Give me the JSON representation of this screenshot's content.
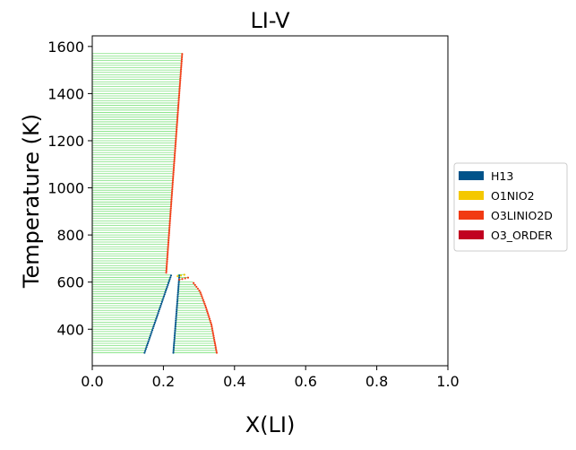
{
  "chart_data": {
    "type": "scatter",
    "title": "LI-V",
    "xlabel": "X(LI)",
    "ylabel": "Temperature (K)",
    "xlim": [
      0.0,
      1.0
    ],
    "ylim": [
      245,
      1645
    ],
    "xticks": [
      0.0,
      0.2,
      0.4,
      0.6,
      0.8,
      1.0
    ],
    "xtick_labels": [
      "0.0",
      "0.2",
      "0.4",
      "0.6",
      "0.8",
      "1.0"
    ],
    "yticks": [
      400,
      600,
      800,
      1000,
      1200,
      1400,
      1600
    ],
    "ytick_labels": [
      "400",
      "600",
      "800",
      "1000",
      "1200",
      "1400",
      "1600"
    ],
    "grid": false,
    "legend_position": "right",
    "legend": [
      {
        "label": "H13",
        "color": "#00538a"
      },
      {
        "label": "O1NIO2",
        "color": "#f4c800"
      },
      {
        "label": "O3LINIO2D",
        "color": "#f13a13"
      },
      {
        "label": "O3_ORDER",
        "color": "#c10020"
      }
    ],
    "tie_line_color": "#66dd66",
    "boundaries": [
      {
        "phase": "H13",
        "color": "#00538a",
        "points": [
          [
            0.147,
            300
          ],
          [
            0.222,
            630
          ]
        ]
      },
      {
        "phase": "H13",
        "color": "#00538a",
        "points": [
          [
            0.228,
            300
          ],
          [
            0.245,
            630
          ]
        ]
      },
      {
        "phase": "O3LINIO2D",
        "color": "#f13a13",
        "points": [
          [
            0.35,
            300
          ],
          [
            0.335,
            420
          ],
          [
            0.318,
            500
          ],
          [
            0.303,
            560
          ],
          [
            0.283,
            600
          ]
        ]
      },
      {
        "phase": "O3LINIO2D",
        "color": "#f13a13",
        "points": [
          [
            0.208,
            640
          ],
          [
            0.23,
            1100
          ],
          [
            0.253,
            1572
          ]
        ]
      },
      {
        "phase": "O3LINIO2D",
        "color": "#f13a13",
        "points": [
          [
            0.245,
            610
          ],
          [
            0.272,
            620
          ]
        ]
      },
      {
        "phase": "O1NIO2",
        "color": "#f4c800",
        "points": [
          [
            0.24,
            625
          ],
          [
            0.262,
            632
          ]
        ]
      }
    ],
    "tie_line_regions": [
      {
        "left": [
          [
            0.0,
            640
          ],
          [
            0.0,
            1572
          ]
        ],
        "right": [
          [
            0.208,
            640
          ],
          [
            0.253,
            1572
          ]
        ],
        "step": 10
      },
      {
        "left": [
          [
            0.147,
            300
          ],
          [
            0.222,
            630
          ]
        ],
        "right": [
          [
            0.0,
            300
          ],
          [
            0.0,
            300
          ]
        ],
        "step": 10,
        "mode": "left-gap"
      },
      {
        "left": [
          [
            0.0,
            300
          ],
          [
            0.0,
            630
          ]
        ],
        "right": [
          [
            0.147,
            300
          ],
          [
            0.222,
            630
          ]
        ],
        "step": 10
      },
      {
        "left": [
          [
            0.228,
            300
          ],
          [
            0.245,
            600
          ]
        ],
        "right": [
          [
            0.35,
            300
          ],
          [
            0.283,
            600
          ]
        ],
        "step": 10,
        "curve": "right-boundary-2"
      }
    ]
  }
}
